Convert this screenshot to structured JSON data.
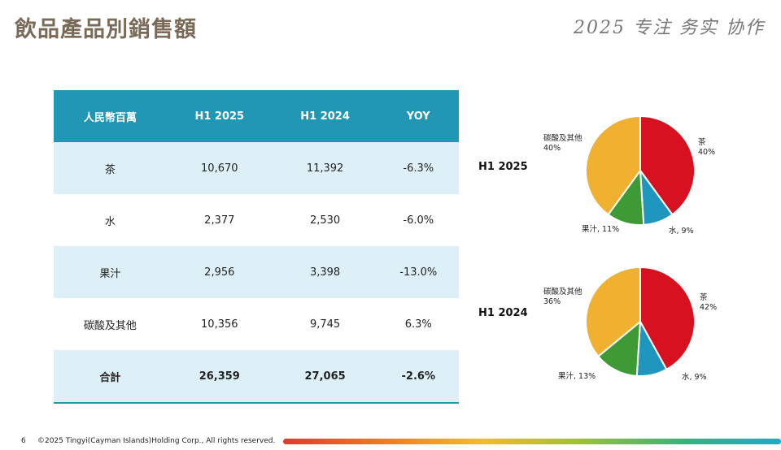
{
  "page": {
    "title": "飲品產品別銷售額",
    "slogan": "2025 专注 务实 协作",
    "page_number": "6",
    "copyright": "©2025 Tingyi(Cayman Islands)Holding Corp., All rights reserved."
  },
  "table": {
    "headers": [
      "人民幣百萬",
      "H1 2025",
      "H1 2024",
      "YOY"
    ],
    "rows": [
      [
        "茶",
        "10,670",
        "11,392",
        "-6.3%"
      ],
      [
        "水",
        "2,377",
        "2,530",
        "-6.0%"
      ],
      [
        "果汁",
        "2,956",
        "3,398",
        "-13.0%"
      ],
      [
        "碳酸及其他",
        "10,356",
        "9,745",
        "6.3%"
      ]
    ],
    "total": [
      "合計",
      "26,359",
      "27,065",
      "-2.6%"
    ]
  },
  "colors": {
    "header_bg": "#2196b5",
    "row_alt_bg": "#def0f7",
    "tea": "#d7111f",
    "water": "#1f96bd",
    "juice": "#3d9a35",
    "carbonated": "#f0b030"
  },
  "chart_data": [
    {
      "type": "pie",
      "title": "H1 2025",
      "slices": [
        {
          "label": "茶",
          "value": 40,
          "value_label": "40%",
          "color": "#d7111f"
        },
        {
          "label": "水",
          "value": 9,
          "value_label": "9%",
          "color": "#1f96bd"
        },
        {
          "label": "果汁",
          "value": 11,
          "value_label": "11%",
          "color": "#3d9a35"
        },
        {
          "label": "碳酸及其他",
          "value": 40,
          "value_label": "40%",
          "color": "#f0b030"
        }
      ]
    },
    {
      "type": "pie",
      "title": "H1 2024",
      "slices": [
        {
          "label": "茶",
          "value": 42,
          "value_label": "42%",
          "color": "#d7111f"
        },
        {
          "label": "水",
          "value": 9,
          "value_label": "9%",
          "color": "#1f96bd"
        },
        {
          "label": "果汁",
          "value": 13,
          "value_label": "13%",
          "color": "#3d9a35"
        },
        {
          "label": "碳酸及其他",
          "value": 36,
          "value_label": "36%",
          "color": "#f0b030"
        }
      ]
    }
  ]
}
